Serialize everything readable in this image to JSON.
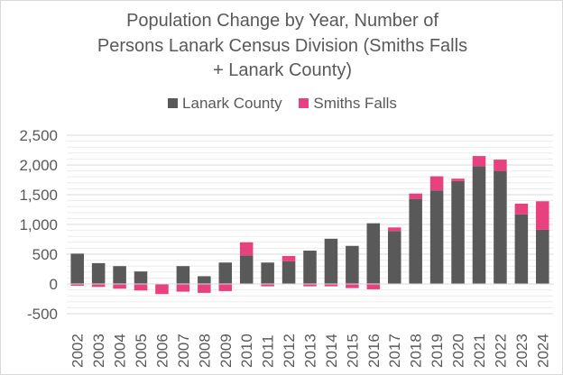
{
  "chart_data": {
    "type": "bar",
    "stacked": true,
    "title": [
      "Population Change by Year, Number of",
      "Persons Lanark Census Division (Smiths Falls",
      "+ Lanark County)"
    ],
    "categories": [
      "2002",
      "2003",
      "2004",
      "2005",
      "2006",
      "2007",
      "2008",
      "2009",
      "2010",
      "2011",
      "2012",
      "2013",
      "2014",
      "2015",
      "2016",
      "2017",
      "2018",
      "2019",
      "2020",
      "2021",
      "2022",
      "2023",
      "2024"
    ],
    "series": [
      {
        "name": "Lanark County",
        "color": "#595959",
        "values": [
          510,
          350,
          300,
          210,
          0,
          300,
          130,
          360,
          480,
          360,
          380,
          560,
          760,
          640,
          1020,
          890,
          1430,
          1570,
          1730,
          1980,
          1900,
          1170,
          910
        ]
      },
      {
        "name": "Smiths Falls",
        "color": "#e8417f",
        "values": [
          -30,
          -50,
          -80,
          -110,
          -170,
          -130,
          -150,
          -120,
          220,
          -40,
          90,
          -40,
          -40,
          -70,
          -90,
          60,
          90,
          240,
          40,
          170,
          190,
          180,
          480
        ]
      }
    ],
    "ylim": [
      -500,
      2500
    ],
    "yticks": [
      -500,
      0,
      500,
      1000,
      1500,
      2000,
      2500
    ],
    "ytick_labels": [
      "-500",
      "0",
      "500",
      "1,000",
      "1,500",
      "2,000",
      "2,500"
    ],
    "xlabel": "",
    "ylabel": "",
    "grid": true,
    "legend_position": "top"
  }
}
